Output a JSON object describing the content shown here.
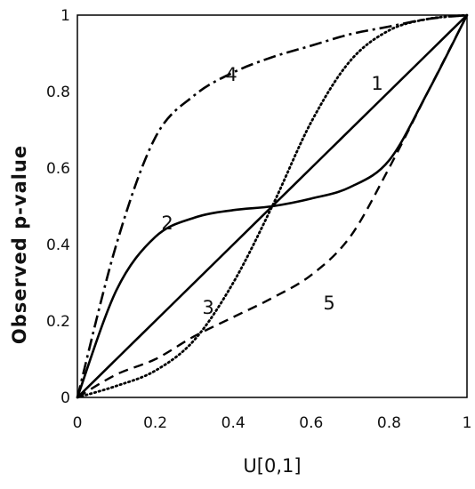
{
  "chart_data": {
    "type": "line",
    "title": "",
    "xlabel": "U[0,1]",
    "ylabel": "Observed p-value",
    "xlim": [
      0,
      1
    ],
    "ylim": [
      0,
      1
    ],
    "grid": false,
    "x_ticks": [
      "0",
      "0.2",
      "0.4",
      "0.6",
      "0.8",
      "1"
    ],
    "y_ticks": [
      "0",
      "0.2",
      "0.4",
      "0.6",
      "0.8",
      "1"
    ],
    "x": [
      0,
      0.1,
      0.2,
      0.3,
      0.4,
      0.5,
      0.6,
      0.7,
      0.8,
      0.9,
      1
    ],
    "series": [
      {
        "label": "1",
        "style": "solid",
        "values": [
          0,
          0.1,
          0.2,
          0.3,
          0.4,
          0.5,
          0.6,
          0.7,
          0.8,
          0.9,
          1
        ]
      },
      {
        "label": "2",
        "style": "solid",
        "values": [
          0,
          0.28,
          0.42,
          0.47,
          0.49,
          0.5,
          0.52,
          0.55,
          0.62,
          0.8,
          1
        ]
      },
      {
        "label": "3",
        "style": "dotted",
        "values": [
          0,
          0.03,
          0.07,
          0.15,
          0.3,
          0.5,
          0.72,
          0.88,
          0.96,
          0.99,
          1
        ]
      },
      {
        "label": "4",
        "style": "dashdot",
        "values": [
          0,
          0.4,
          0.68,
          0.79,
          0.85,
          0.89,
          0.92,
          0.95,
          0.97,
          0.99,
          1
        ]
      },
      {
        "label": "5",
        "style": "dashed",
        "values": [
          0,
          0.06,
          0.1,
          0.16,
          0.21,
          0.26,
          0.32,
          0.42,
          0.6,
          0.8,
          1
        ]
      }
    ]
  }
}
